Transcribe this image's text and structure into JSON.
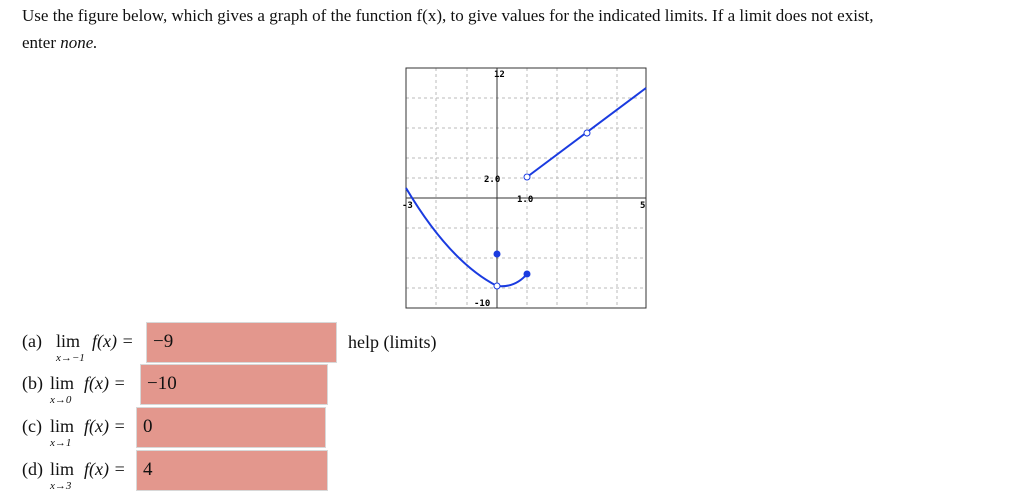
{
  "prompt": {
    "line1": "Use the figure below, which gives a graph of the function f(x), to give values for the indicated limits. If a limit does not exist,",
    "line2a": "enter",
    "line2b": "none."
  },
  "graph": {
    "labels": {
      "top": "12",
      "upper": "2.0",
      "xtick": "1.0",
      "left": "-3",
      "right": "5",
      "bottom": "-10"
    }
  },
  "help": "help (limits)",
  "parts": [
    {
      "tag": "(a)",
      "lim": "lim",
      "sub": "x→−1",
      "expr": "f(x) =",
      "answer": "−9"
    },
    {
      "tag": "(b)",
      "lim": "lim",
      "sub": "x→0",
      "expr": "f(x) =",
      "answer": "−10"
    },
    {
      "tag": "(c)",
      "lim": "lim",
      "sub": "x→1",
      "expr": "f(x) =",
      "answer": "0"
    },
    {
      "tag": "(d)",
      "lim": "lim",
      "sub": "x→3",
      "expr": "f(x) =",
      "answer": "4"
    }
  ]
}
